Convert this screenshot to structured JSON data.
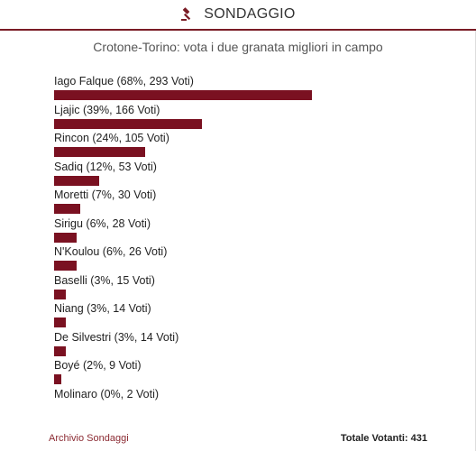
{
  "header": {
    "icon": "gavel-icon",
    "title": "SONDAGGIO",
    "accent_color": "#7a1c25"
  },
  "poll": {
    "question": "Crotone-Torino: vota i due granata migliori in campo",
    "bar_color": "#7a1121",
    "options": [
      {
        "label": "Iago Falque (68%, 293 Voti)",
        "percent": 68
      },
      {
        "label": "Ljajic (39%, 166 Voti)",
        "percent": 39
      },
      {
        "label": "Rincon (24%, 105 Voti)",
        "percent": 24
      },
      {
        "label": "Sadiq (12%, 53 Voti)",
        "percent": 12
      },
      {
        "label": "Moretti (7%, 30 Voti)",
        "percent": 7
      },
      {
        "label": "Sirigu (6%, 28 Voti)",
        "percent": 6
      },
      {
        "label": "N'Koulou (6%, 26 Voti)",
        "percent": 6
      },
      {
        "label": "Baselli (3%, 15 Voti)",
        "percent": 3
      },
      {
        "label": "Niang (3%, 14 Voti)",
        "percent": 3
      },
      {
        "label": "De Silvestri (3%, 14 Voti)",
        "percent": 3
      },
      {
        "label": "Boyé (2%, 9 Voti)",
        "percent": 2
      },
      {
        "label": "Molinaro (0%, 2 Voti)",
        "percent": 0
      }
    ]
  },
  "footer": {
    "archive_link": "Archivio Sondaggi",
    "total_voters": "Totale Votanti: 431"
  }
}
